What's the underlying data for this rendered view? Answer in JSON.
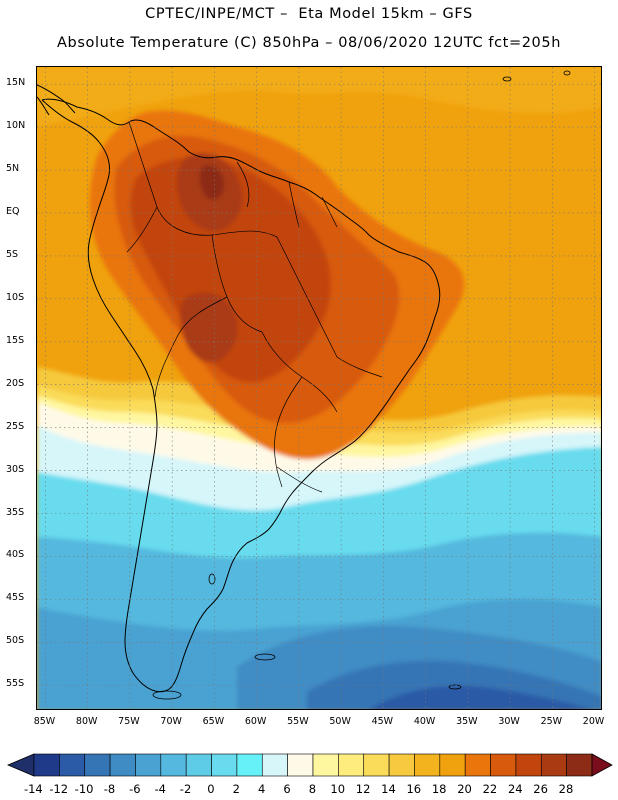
{
  "title": {
    "line1": "CPTEC/INPE/MCT –  Eta Model 15km – GFS",
    "line2": "Absolute Temperature (C) 850hPa – 08/06/2020 12UTC fct=205h"
  },
  "map": {
    "region": "South America",
    "lon_range": [
      -86,
      -19
    ],
    "lat_range": [
      17,
      -58
    ],
    "lat_ticks": [
      {
        "value": 15,
        "label": "15N"
      },
      {
        "value": 10,
        "label": "10N"
      },
      {
        "value": 5,
        "label": "5N"
      },
      {
        "value": 0,
        "label": "EQ"
      },
      {
        "value": -5,
        "label": "5S"
      },
      {
        "value": -10,
        "label": "10S"
      },
      {
        "value": -15,
        "label": "15S"
      },
      {
        "value": -20,
        "label": "20S"
      },
      {
        "value": -25,
        "label": "25S"
      },
      {
        "value": -30,
        "label": "30S"
      },
      {
        "value": -35,
        "label": "35S"
      },
      {
        "value": -40,
        "label": "40S"
      },
      {
        "value": -45,
        "label": "45S"
      },
      {
        "value": -50,
        "label": "50S"
      },
      {
        "value": -55,
        "label": "55S"
      }
    ],
    "lon_ticks": [
      {
        "value": -85,
        "label": "85W"
      },
      {
        "value": -80,
        "label": "80W"
      },
      {
        "value": -75,
        "label": "75W"
      },
      {
        "value": -70,
        "label": "70W"
      },
      {
        "value": -65,
        "label": "65W"
      },
      {
        "value": -60,
        "label": "60W"
      },
      {
        "value": -55,
        "label": "55W"
      },
      {
        "value": -50,
        "label": "50W"
      },
      {
        "value": -45,
        "label": "45W"
      },
      {
        "value": -40,
        "label": "40W"
      },
      {
        "value": -35,
        "label": "35W"
      },
      {
        "value": -30,
        "label": "30W"
      },
      {
        "value": -25,
        "label": "25W"
      },
      {
        "value": -20,
        "label": "20W"
      }
    ]
  },
  "colorbar": {
    "labels": [
      "-14",
      "-12",
      "-10",
      "-8",
      "-6",
      "-4",
      "-2",
      "0",
      "2",
      "4",
      "6",
      "8",
      "10",
      "12",
      "14",
      "16",
      "18",
      "20",
      "22",
      "24",
      "26",
      "28"
    ],
    "colors": [
      "#203a8a",
      "#2b5aa6",
      "#3574b5",
      "#3f8cc4",
      "#4aa2d2",
      "#55b8de",
      "#5ecce6",
      "#68dcee",
      "#66f0f8",
      "#d6f6fa",
      "#fffae8",
      "#fff7a0",
      "#ffec7e",
      "#fadc5a",
      "#f6c93e",
      "#f3b31e",
      "#f0a20e",
      "#e9750b",
      "#d75a0d",
      "#c2450e",
      "#a93a12",
      "#8c2c16"
    ],
    "under_color": "#1f2f6a",
    "over_color": "#7a0d1c"
  }
}
